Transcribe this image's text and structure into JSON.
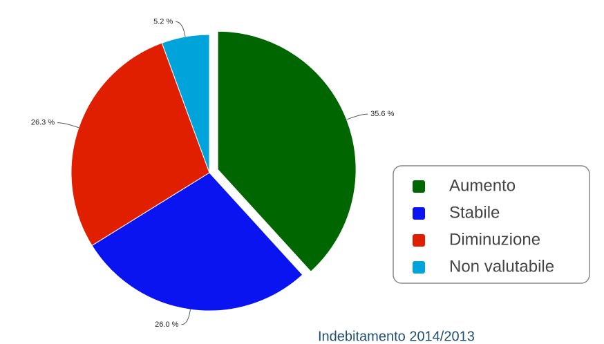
{
  "chart_data": {
    "type": "pie",
    "title": "Indebitamento 2014/2013",
    "categories": [
      "Aumento",
      "Stabile",
      "Diminuzione",
      "Non valutabile"
    ],
    "values": [
      35.6,
      26.0,
      26.3,
      5.2
    ],
    "value_labels": [
      "35.6 %",
      "26.0 %",
      "26.3 %",
      "5.2 %"
    ],
    "colors": [
      "#006600",
      "#0a14f0",
      "#e01e00",
      "#00a3da"
    ],
    "exploded": 0
  }
}
